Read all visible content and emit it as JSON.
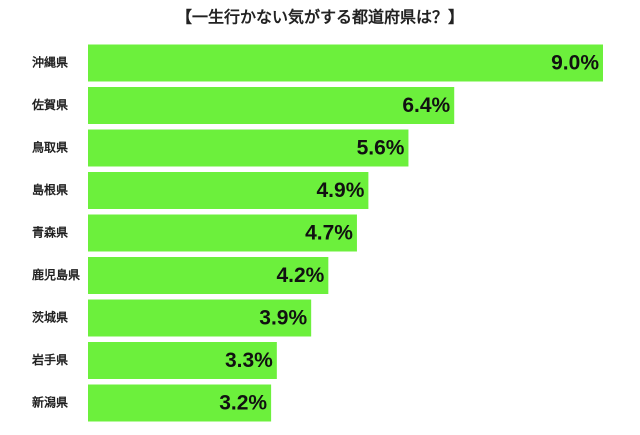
{
  "chart_data": {
    "type": "bar",
    "orientation": "horizontal",
    "title": "【一生行かない気がする都道府県は？】",
    "categories": [
      "沖縄県",
      "佐賀県",
      "鳥取県",
      "島根県",
      "青森県",
      "鹿児島県",
      "茨城県",
      "岩手県",
      "新潟県"
    ],
    "values": [
      9.0,
      6.4,
      5.6,
      4.9,
      4.7,
      4.2,
      3.9,
      3.3,
      3.2
    ],
    "value_labels": [
      "9.0%",
      "6.4%",
      "5.6%",
      "4.9%",
      "4.7%",
      "4.2%",
      "3.9%",
      "3.3%",
      "3.2%"
    ],
    "color": "#6cf03c"
  }
}
